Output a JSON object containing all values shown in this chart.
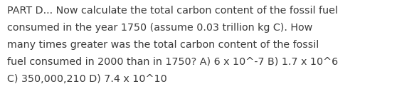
{
  "lines": [
    "PART D... Now calculate the total carbon content of the fossil fuel",
    "consumed in the year 1750 (assume 0.03 trillion kg C). How",
    "many times greater was the total carbon content of the fossil",
    "fuel consumed in 2000 than in 1750? A) 6 x 10^-7 B) 1.7 x 10^6",
    "C) 350,000,210 D) 7.4 x 10^10"
  ],
  "background_color": "#ffffff",
  "text_color": "#3a3a3a",
  "font_size": 10.3,
  "figsize": [
    5.58,
    1.46
  ],
  "dpi": 100
}
